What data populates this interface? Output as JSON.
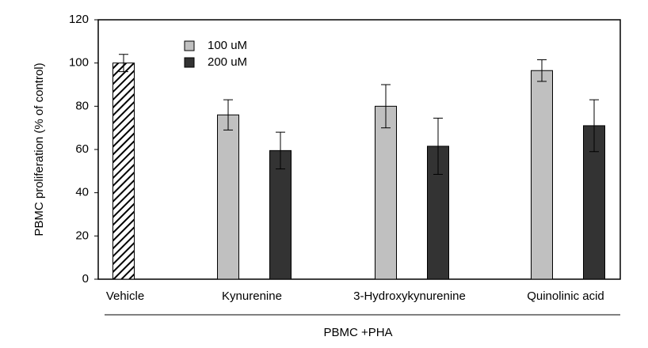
{
  "chart_data": {
    "type": "bar",
    "ylabel": "PBMC proliferation (% of control)",
    "group_label": "PBMC +PHA",
    "categories": [
      "Vehicle",
      "Kynurenine",
      "3-Hydroxykynurenine",
      "Quinolinic acid"
    ],
    "series": [
      {
        "name": "100 uM",
        "color": "#c0c0c0",
        "values": [
          null,
          76,
          80,
          96.5
        ],
        "errors": [
          null,
          7,
          10,
          5
        ]
      },
      {
        "name": "200 uM",
        "color": "#333333",
        "values": [
          null,
          59.5,
          61.5,
          71
        ],
        "errors": [
          null,
          8.5,
          13,
          12
        ]
      },
      {
        "color": "#ffffff",
        "hatch": true,
        "values": [
          100,
          null,
          null,
          null
        ],
        "errors": [
          4,
          null,
          null,
          null
        ]
      }
    ],
    "ylim": [
      0,
      120
    ],
    "yticks": [
      0,
      20,
      40,
      60,
      80,
      100,
      120
    ],
    "legend": "upper left"
  }
}
